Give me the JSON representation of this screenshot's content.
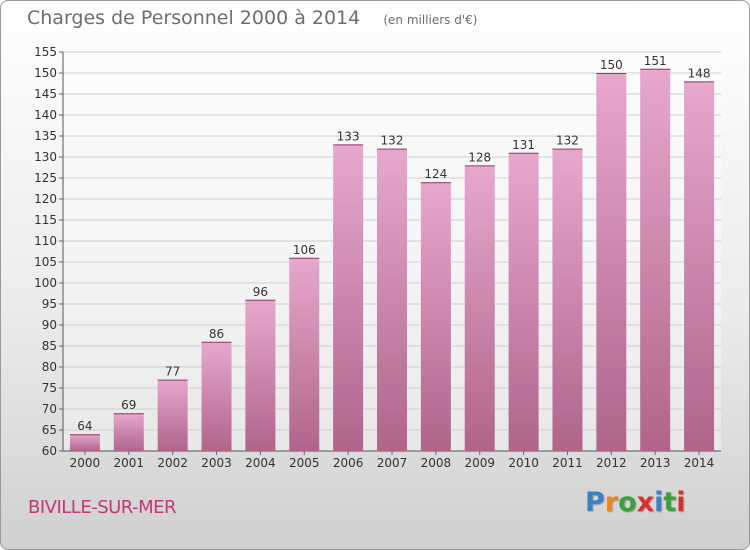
{
  "header": {
    "title": "Charges de Personnel 2000 à 2014",
    "subtitle": "(en milliers d'€)"
  },
  "footer": {
    "place": "BIVILLE-SUR-MER",
    "brand": "Proxiti"
  },
  "colors": {
    "bar_light": "#e7a8cd",
    "bar_dark": "#b0648c",
    "place_text": "#c2387a",
    "logo_letters": [
      "#3b7fc4",
      "#e88a1a",
      "#3aa03a",
      "#d62f2f",
      "#3b7fc4",
      "#3aa03a",
      "#d62f2f"
    ]
  },
  "chart_data": {
    "type": "bar",
    "categories": [
      "2000",
      "2001",
      "2002",
      "2003",
      "2004",
      "2005",
      "2006",
      "2007",
      "2008",
      "2009",
      "2010",
      "2011",
      "2012",
      "2013",
      "2014"
    ],
    "values": [
      64,
      69,
      77,
      86,
      96,
      106,
      133,
      132,
      124,
      128,
      131,
      132,
      150,
      151,
      148
    ],
    "ylim": [
      60,
      155
    ],
    "yticks": [
      60,
      65,
      70,
      75,
      80,
      85,
      90,
      95,
      100,
      105,
      110,
      115,
      120,
      125,
      130,
      135,
      140,
      145,
      150,
      155
    ],
    "grid": true,
    "data_labels": true
  }
}
